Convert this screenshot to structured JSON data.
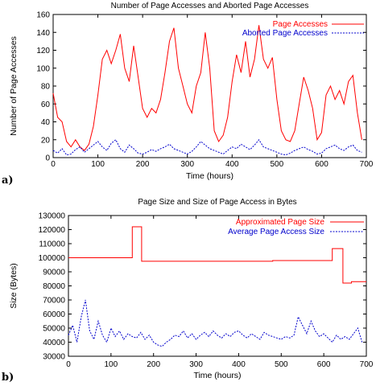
{
  "chart_data": [
    {
      "panel_label": "a)",
      "type": "line",
      "title": "Number of Page Accesses and Aborted Page Accesses",
      "xlabel": "Time (hours)",
      "ylabel": "Number of Page Accesses",
      "xlim": [
        0,
        700
      ],
      "ylim": [
        0,
        160
      ],
      "xticks": [
        "0",
        "100",
        "200",
        "300",
        "400",
        "500",
        "600",
        "700"
      ],
      "yticks": [
        "0",
        "20",
        "40",
        "60",
        "80",
        "100",
        "120",
        "140",
        "160"
      ],
      "legend_position": "top-right",
      "grid": false,
      "series": [
        {
          "name": "Page Accesses",
          "color": "#ff0000",
          "style": "solid",
          "x": [
            0,
            10,
            20,
            30,
            40,
            50,
            60,
            70,
            80,
            90,
            100,
            110,
            120,
            130,
            140,
            150,
            160,
            170,
            180,
            190,
            200,
            210,
            220,
            230,
            240,
            250,
            260,
            270,
            280,
            290,
            300,
            310,
            320,
            330,
            340,
            350,
            360,
            370,
            380,
            390,
            400,
            410,
            420,
            430,
            440,
            450,
            460,
            470,
            480,
            490,
            500,
            510,
            520,
            530,
            540,
            550,
            560,
            570,
            580,
            590,
            600,
            610,
            620,
            630,
            640,
            650,
            660,
            670,
            680,
            690
          ],
          "y": [
            72,
            45,
            40,
            18,
            12,
            20,
            12,
            8,
            15,
            35,
            70,
            110,
            120,
            105,
            120,
            138,
            100,
            85,
            125,
            90,
            55,
            45,
            55,
            50,
            65,
            95,
            130,
            145,
            100,
            80,
            60,
            50,
            80,
            95,
            140,
            100,
            30,
            18,
            25,
            45,
            85,
            115,
            95,
            130,
            90,
            110,
            148,
            110,
            100,
            112,
            65,
            30,
            20,
            18,
            30,
            60,
            90,
            75,
            55,
            20,
            28,
            70,
            80,
            65,
            75,
            60,
            85,
            92,
            50,
            20
          ]
        },
        {
          "name": "Aborted Page Accesses",
          "color": "#0000cc",
          "style": "dashed",
          "x": [
            0,
            10,
            20,
            30,
            40,
            50,
            60,
            70,
            80,
            90,
            100,
            110,
            120,
            130,
            140,
            150,
            160,
            170,
            180,
            190,
            200,
            210,
            220,
            230,
            240,
            250,
            260,
            270,
            280,
            290,
            300,
            310,
            320,
            330,
            340,
            350,
            360,
            370,
            380,
            390,
            400,
            410,
            420,
            430,
            440,
            450,
            460,
            470,
            480,
            490,
            500,
            510,
            520,
            530,
            540,
            550,
            560,
            570,
            580,
            590,
            600,
            610,
            620,
            630,
            640,
            650,
            660,
            670,
            680,
            690
          ],
          "y": [
            8,
            5,
            10,
            3,
            4,
            9,
            12,
            6,
            10,
            14,
            18,
            12,
            8,
            16,
            20,
            10,
            6,
            14,
            10,
            5,
            4,
            6,
            9,
            7,
            10,
            12,
            15,
            10,
            8,
            6,
            4,
            7,
            12,
            18,
            14,
            10,
            8,
            6,
            4,
            8,
            12,
            10,
            15,
            12,
            9,
            14,
            20,
            12,
            10,
            8,
            6,
            4,
            3,
            5,
            8,
            10,
            12,
            9,
            7,
            4,
            5,
            10,
            12,
            14,
            10,
            8,
            12,
            14,
            8,
            6
          ]
        }
      ]
    },
    {
      "panel_label": "b)",
      "type": "line",
      "title": "Page Size and Size of Page Access in Bytes",
      "xlabel": "Time (hours)",
      "ylabel": "Size (Bytes)",
      "xlim": [
        0,
        700
      ],
      "ylim": [
        30000,
        130000
      ],
      "xticks": [
        "0",
        "100",
        "200",
        "300",
        "400",
        "500",
        "600",
        "700"
      ],
      "yticks": [
        "30000",
        "40000",
        "50000",
        "60000",
        "70000",
        "80000",
        "90000",
        "100000",
        "110000",
        "120000",
        "130000"
      ],
      "legend_position": "top-right",
      "grid": false,
      "series": [
        {
          "name": "Approximated Page Size",
          "color": "#ff0000",
          "style": "solid",
          "x": [
            0,
            150,
            150,
            172,
            172,
            480,
            480,
            620,
            620,
            645,
            645,
            665,
            665,
            700
          ],
          "y": [
            100000,
            100000,
            122000,
            122000,
            97500,
            97500,
            98000,
            98000,
            106500,
            106500,
            82000,
            82000,
            83000,
            83000
          ]
        },
        {
          "name": "Average Page Access Size",
          "color": "#0000cc",
          "style": "dashed",
          "x": [
            0,
            10,
            20,
            30,
            40,
            50,
            60,
            70,
            80,
            90,
            100,
            110,
            120,
            130,
            140,
            150,
            160,
            170,
            180,
            190,
            200,
            210,
            220,
            230,
            240,
            250,
            260,
            270,
            280,
            290,
            300,
            310,
            320,
            330,
            340,
            350,
            360,
            370,
            380,
            390,
            400,
            410,
            420,
            430,
            440,
            450,
            460,
            470,
            480,
            490,
            500,
            510,
            520,
            530,
            540,
            550,
            560,
            570,
            580,
            590,
            600,
            610,
            620,
            630,
            640,
            650,
            660,
            670,
            680,
            690
          ],
          "y": [
            45000,
            52000,
            40000,
            58000,
            70000,
            48000,
            42000,
            55000,
            45000,
            40000,
            50000,
            44000,
            48000,
            42000,
            46000,
            44000,
            43000,
            47000,
            42000,
            45000,
            40000,
            38000,
            37000,
            40000,
            42000,
            45000,
            44000,
            48000,
            43000,
            46000,
            42000,
            45000,
            47000,
            44000,
            48000,
            45000,
            43000,
            46000,
            44000,
            47000,
            48000,
            45000,
            43000,
            46000,
            44000,
            42000,
            47000,
            45000,
            44000,
            43000,
            42000,
            44000,
            43000,
            45000,
            58000,
            52000,
            46000,
            55000,
            48000,
            44000,
            46000,
            43000,
            40000,
            45000,
            42000,
            44000,
            42000,
            46000,
            50000,
            40000
          ]
        }
      ]
    }
  ]
}
